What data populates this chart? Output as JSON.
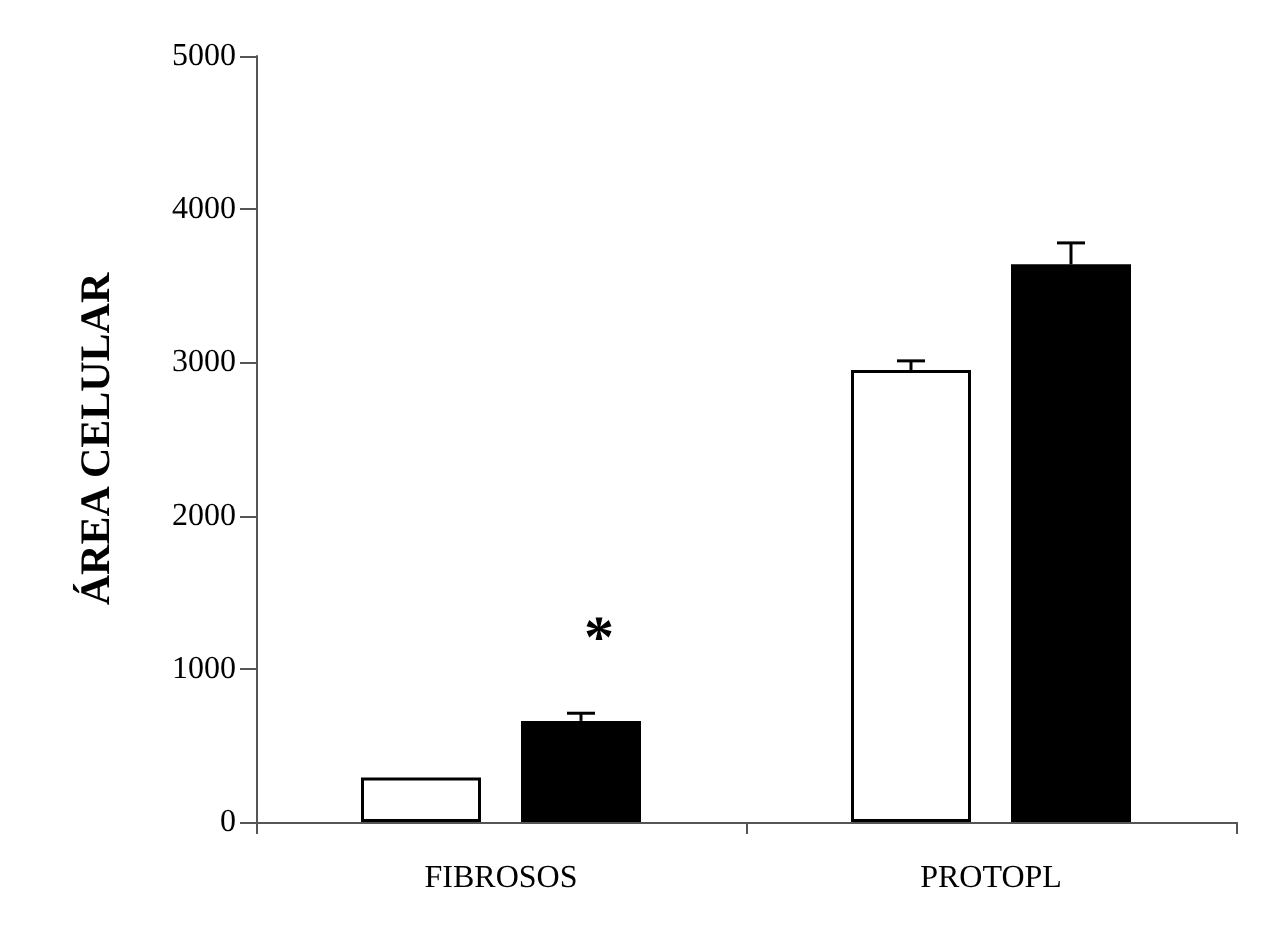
{
  "chart_data": {
    "type": "bar",
    "ylabel": "ÁREA CELULAR",
    "categories": [
      "FIBROSOS",
      "PROTOPL"
    ],
    "series": [
      {
        "color": "#ffffff",
        "values": [
          290,
          2950
        ],
        "errors": [
          null,
          60
        ]
      },
      {
        "color": "#000000",
        "values": [
          660,
          3640
        ],
        "errors": [
          50,
          140
        ]
      }
    ],
    "ylim": [
      0,
      5000
    ],
    "yticks": [
      0,
      1000,
      2000,
      3000,
      4000,
      5000
    ],
    "grid": false,
    "annotations": [
      "*"
    ]
  }
}
